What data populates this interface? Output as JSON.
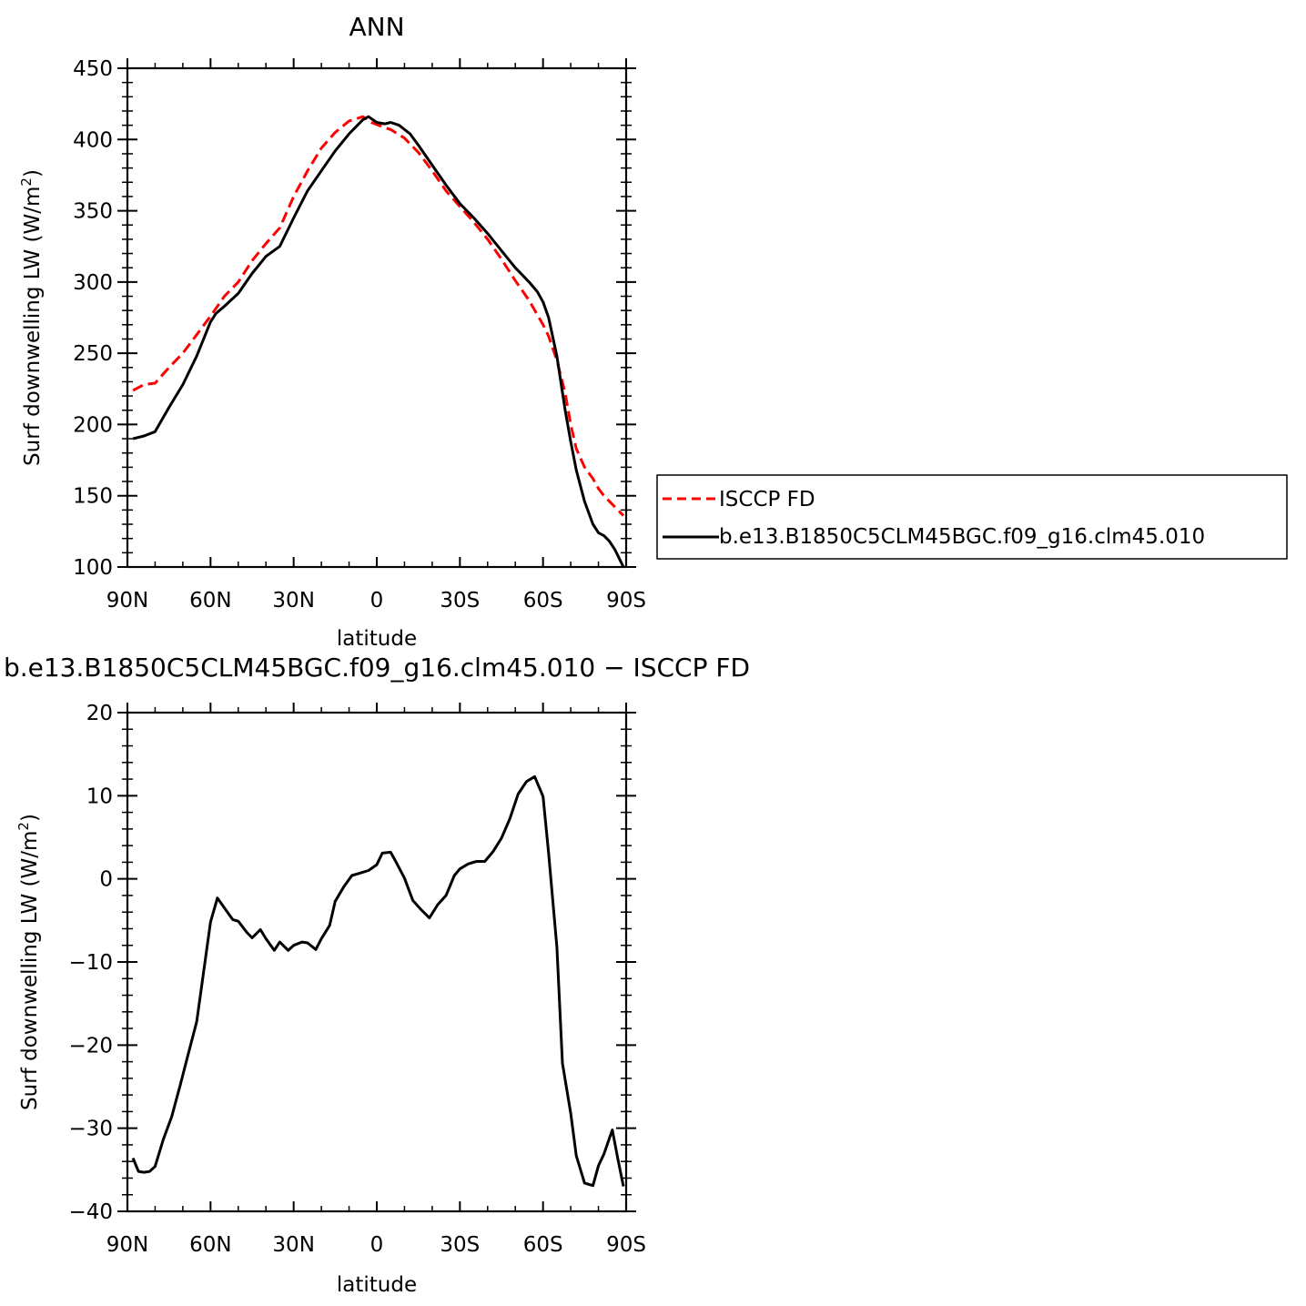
{
  "chart_data": [
    {
      "type": "line",
      "title": "ANN",
      "xlabel": "latitude",
      "ylabel": "Surf downwelling LW (W/m²)",
      "ylabel_main": "Surf downwelling LW (W/m",
      "ylabel_sup": "2",
      "ylabel_end": ")",
      "xlim": [
        90,
        -90
      ],
      "ylim": [
        100,
        450
      ],
      "xticks": [
        90,
        60,
        30,
        0,
        -30,
        -60,
        -90
      ],
      "xtick_labels": [
        "90N",
        "60N",
        "30N",
        "0",
        "30S",
        "60S",
        "90S"
      ],
      "yticks": [
        100,
        150,
        200,
        250,
        300,
        350,
        400,
        450
      ],
      "ytick_labels": [
        "100",
        "150",
        "200",
        "250",
        "300",
        "350",
        "400",
        "450"
      ],
      "legend": "right",
      "series": [
        {
          "name": "ISCCP FD",
          "color": "#ff0000",
          "dash": true,
          "x": [
            88,
            84,
            80,
            75,
            70,
            65,
            60,
            55,
            50,
            45,
            40,
            35,
            30,
            25,
            20,
            15,
            10,
            5,
            2,
            -2,
            -5,
            -10,
            -15,
            -20,
            -25,
            -30,
            -35,
            -40,
            -45,
            -50,
            -55,
            -60,
            -62,
            -65,
            -68,
            -70,
            -72,
            -75,
            -78,
            -80,
            -82,
            -85,
            -89
          ],
          "y": [
            224,
            228,
            229,
            240,
            250,
            263,
            276,
            290,
            300,
            315,
            327,
            338,
            360,
            378,
            394,
            405,
            413,
            416,
            412,
            409,
            407,
            401,
            391,
            378,
            364,
            353,
            342,
            330,
            316,
            301,
            287,
            270,
            262,
            245,
            222,
            200,
            183,
            170,
            162,
            155,
            150,
            144,
            136
          ]
        },
        {
          "name": "b.e13.B1850C5CLM45BGC.f09_g16.clm45.010",
          "color": "#000000",
          "dash": false,
          "x": [
            88,
            84,
            80,
            75,
            70,
            65,
            60,
            58,
            55,
            50,
            45,
            40,
            35,
            30,
            25,
            20,
            15,
            10,
            5,
            3,
            0,
            -3,
            -5,
            -8,
            -12,
            -15,
            -20,
            -25,
            -30,
            -35,
            -40,
            -45,
            -50,
            -55,
            -58,
            -60,
            -62,
            -65,
            -68,
            -70,
            -72,
            -75,
            -78,
            -80,
            -82,
            -84,
            -86,
            -88,
            -89
          ],
          "y": [
            190,
            192,
            195,
            212,
            228,
            248,
            272,
            278,
            283,
            292,
            306,
            318,
            325,
            345,
            364,
            378,
            392,
            404,
            414,
            416,
            412,
            411,
            412,
            410,
            404,
            396,
            382,
            368,
            355,
            345,
            334,
            322,
            310,
            300,
            293,
            286,
            275,
            248,
            210,
            188,
            168,
            146,
            130,
            124,
            122,
            118,
            112,
            104,
            100
          ]
        }
      ]
    },
    {
      "type": "line",
      "title": "b.e13.B1850C5CLM45BGC.f09_g16.clm45.010 − ISCCP FD",
      "xlabel": "latitude",
      "ylabel": "Surf downwelling LW (W/m²)",
      "ylabel_main": "Surf downwelling LW (W/m",
      "ylabel_sup": "2",
      "ylabel_end": ")",
      "xlim": [
        90,
        -90
      ],
      "ylim": [
        -40,
        20
      ],
      "xticks": [
        90,
        60,
        30,
        0,
        -30,
        -60,
        -90
      ],
      "xtick_labels": [
        "90N",
        "60N",
        "30N",
        "0",
        "30S",
        "60S",
        "90S"
      ],
      "yticks": [
        -40,
        -30,
        -20,
        -10,
        0,
        10,
        20
      ],
      "ytick_labels": [
        "−40",
        "−30",
        "−20",
        "−10",
        "0",
        "10",
        "20"
      ],
      "series": [
        {
          "color": "#000000",
          "dash": false,
          "x": [
            88,
            86,
            84,
            82,
            80,
            77,
            74,
            71,
            68,
            65,
            63,
            60,
            57.5,
            55,
            52,
            50,
            47,
            45,
            42,
            40,
            37,
            35,
            32,
            30,
            27,
            25,
            22,
            20,
            17,
            15,
            12,
            9,
            6,
            3,
            0,
            -2,
            -5,
            -7,
            -10,
            -13,
            -16,
            -19,
            -22,
            -25,
            -28,
            -30,
            -33,
            -36,
            -39,
            -42,
            -45,
            -48,
            -51,
            -54,
            -57,
            -60,
            -62,
            -65,
            -67,
            -70,
            -72,
            -75,
            -78,
            -80,
            -82,
            -85,
            -87,
            -89
          ],
          "y": [
            -33.6,
            -35.2,
            -35.3,
            -35.2,
            -34.6,
            -31.3,
            -28.6,
            -24.9,
            -21,
            -17.2,
            -12.4,
            -5.2,
            -2.3,
            -3.5,
            -4.9,
            -5.1,
            -6.4,
            -7.1,
            -6.1,
            -7.2,
            -8.6,
            -7.6,
            -8.6,
            -8,
            -7.6,
            -7.7,
            -8.5,
            -7.2,
            -5.6,
            -2.7,
            -1,
            0.4,
            0.7,
            1,
            1.7,
            3.1,
            3.2,
            2,
            0.1,
            -2.6,
            -3.7,
            -4.7,
            -3.1,
            -2,
            0.4,
            1.2,
            1.8,
            2.1,
            2.1,
            3.3,
            4.9,
            7.2,
            10.2,
            11.7,
            12.3,
            9.9,
            3.1,
            -8.2,
            -22.2,
            -28.2,
            -33.3,
            -36.6,
            -36.9,
            -34.5,
            -33.1,
            -30.2,
            -33.7,
            -37
          ]
        }
      ]
    }
  ]
}
